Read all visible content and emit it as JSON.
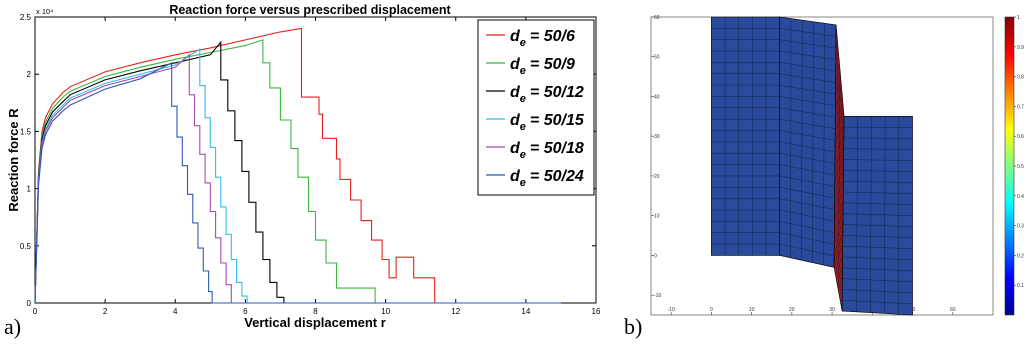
{
  "panel_a_label": "a)",
  "panel_b_label": "b)",
  "chart_data": [
    {
      "type": "line",
      "title": "Reaction force versus prescribed displacement",
      "xlabel": "Vertical displacement r",
      "ylabel": "Reaction force R",
      "y_exponent": "x 10⁴",
      "xlim": [
        0,
        16
      ],
      "ylim": [
        0,
        2.5
      ],
      "x_ticks": [
        0,
        2,
        4,
        6,
        8,
        10,
        12,
        14,
        16
      ],
      "y_ticks": [
        0,
        0.5,
        1,
        1.5,
        2,
        2.5
      ],
      "grid": false,
      "legend_position": "top-right",
      "series": [
        {
          "name": "d_e = 50/6",
          "color": "#e8201c",
          "x": [
            0,
            0.05,
            0.1,
            0.2,
            0.3,
            0.5,
            0.8,
            1,
            2,
            3,
            4,
            5,
            6,
            7,
            7.6,
            7.6,
            8.1,
            8.1,
            8.2,
            8.2,
            8.6,
            8.6,
            8.7,
            8.7,
            9.0,
            9.0,
            9.3,
            9.3,
            9.6,
            9.6,
            9.9,
            9.9,
            10.1,
            10.1,
            10.3,
            10.3,
            10.8,
            10.8,
            11.4,
            11.4,
            15
          ],
          "y": [
            0,
            0.6,
            1.15,
            1.5,
            1.62,
            1.74,
            1.84,
            1.89,
            2.02,
            2.1,
            2.17,
            2.23,
            2.3,
            2.37,
            2.4,
            1.8,
            1.8,
            1.65,
            1.65,
            1.44,
            1.44,
            1.26,
            1.26,
            1.08,
            1.08,
            0.9,
            0.9,
            0.72,
            0.72,
            0.55,
            0.55,
            0.38,
            0.38,
            0.22,
            0.22,
            0.4,
            0.4,
            0.22,
            0.22,
            0,
            0
          ]
        },
        {
          "name": "d_e = 50/9",
          "color": "#3cb53c",
          "x": [
            0,
            0.05,
            0.1,
            0.2,
            0.3,
            0.5,
            0.8,
            1,
            2,
            3,
            4,
            5,
            6,
            6.5,
            6.5,
            6.7,
            6.7,
            7.0,
            7.0,
            7.3,
            7.3,
            7.5,
            7.5,
            7.8,
            7.8,
            8.0,
            8.0,
            8.3,
            8.3,
            8.6,
            8.6,
            9.7,
            9.7,
            15
          ],
          "y": [
            0,
            0.58,
            1.12,
            1.46,
            1.58,
            1.7,
            1.8,
            1.85,
            1.98,
            2.06,
            2.13,
            2.19,
            2.25,
            2.3,
            2.1,
            2.1,
            1.88,
            1.88,
            1.6,
            1.6,
            1.35,
            1.35,
            1.1,
            1.1,
            0.8,
            0.8,
            0.55,
            0.55,
            0.35,
            0.35,
            0.13,
            0.13,
            0,
            0
          ]
        },
        {
          "name": "d_e = 50/12",
          "color": "#000000",
          "x": [
            0,
            0.05,
            0.1,
            0.2,
            0.3,
            0.5,
            0.8,
            1,
            2,
            3,
            4,
            5,
            5.3,
            5.3,
            5.5,
            5.5,
            5.7,
            5.7,
            5.9,
            5.9,
            6.1,
            6.1,
            6.3,
            6.3,
            6.5,
            6.5,
            6.7,
            6.7,
            6.9,
            6.9,
            7.1,
            7.1,
            15
          ],
          "y": [
            0,
            0.56,
            1.1,
            1.43,
            1.55,
            1.67,
            1.76,
            1.82,
            1.95,
            2.03,
            2.1,
            2.17,
            2.28,
            1.95,
            1.95,
            1.68,
            1.68,
            1.42,
            1.42,
            1.15,
            1.15,
            0.88,
            0.88,
            0.62,
            0.62,
            0.38,
            0.38,
            0.18,
            0.18,
            0.05,
            0.05,
            0,
            0
          ]
        },
        {
          "name": "d_e = 50/15",
          "color": "#33bfe0",
          "x": [
            0,
            0.05,
            0.1,
            0.2,
            0.3,
            0.5,
            0.8,
            1,
            2,
            3,
            4,
            4.7,
            4.7,
            4.85,
            4.85,
            5.0,
            5.0,
            5.15,
            5.15,
            5.3,
            5.3,
            5.45,
            5.45,
            5.6,
            5.6,
            5.75,
            5.75,
            5.9,
            5.9,
            6.05,
            6.05,
            15
          ],
          "y": [
            0,
            0.55,
            1.08,
            1.4,
            1.52,
            1.64,
            1.73,
            1.79,
            1.92,
            2.0,
            2.08,
            2.22,
            1.9,
            1.9,
            1.62,
            1.62,
            1.36,
            1.36,
            1.1,
            1.1,
            0.84,
            0.84,
            0.6,
            0.6,
            0.38,
            0.38,
            0.18,
            0.18,
            0.06,
            0.06,
            0,
            0
          ]
        },
        {
          "name": "d_e = 50/18",
          "color": "#a04cb4",
          "x": [
            0,
            0.05,
            0.1,
            0.2,
            0.3,
            0.5,
            0.8,
            1,
            2,
            3,
            4,
            4.4,
            4.4,
            4.55,
            4.55,
            4.7,
            4.7,
            4.85,
            4.85,
            5.0,
            5.0,
            5.15,
            5.15,
            5.3,
            5.3,
            5.45,
            5.45,
            5.6,
            5.6,
            15
          ],
          "y": [
            0,
            0.54,
            1.06,
            1.38,
            1.5,
            1.62,
            1.71,
            1.77,
            1.9,
            1.98,
            2.06,
            2.17,
            1.82,
            1.82,
            1.55,
            1.55,
            1.3,
            1.3,
            1.05,
            1.05,
            0.8,
            0.8,
            0.57,
            0.57,
            0.35,
            0.35,
            0.16,
            0.16,
            0,
            0
          ]
        },
        {
          "name": "d_e = 50/24",
          "color": "#2f58b6",
          "x": [
            0,
            0.05,
            0.1,
            0.2,
            0.3,
            0.5,
            0.8,
            1,
            2,
            3,
            3.9,
            3.9,
            4.05,
            4.05,
            4.2,
            4.2,
            4.35,
            4.35,
            4.5,
            4.5,
            4.65,
            4.65,
            4.8,
            4.8,
            4.95,
            4.95,
            5.05,
            5.05,
            15
          ],
          "y": [
            0,
            0.52,
            1.03,
            1.35,
            1.47,
            1.59,
            1.68,
            1.73,
            1.87,
            1.96,
            2.1,
            1.72,
            1.72,
            1.45,
            1.45,
            1.2,
            1.2,
            0.95,
            0.95,
            0.7,
            0.7,
            0.48,
            0.48,
            0.28,
            0.28,
            0.1,
            0.1,
            0,
            0
          ]
        }
      ],
      "legend": [
        {
          "sub": "e",
          "value": "= 50/6"
        },
        {
          "sub": "e",
          "value": "= 50/9"
        },
        {
          "sub": "e",
          "value": "= 50/12"
        },
        {
          "sub": "e",
          "value": "= 50/15"
        },
        {
          "sub": "e",
          "value": "= 50/18"
        },
        {
          "sub": "e",
          "value": "= 50/24"
        }
      ],
      "legend_symbol": "d"
    },
    {
      "type": "heatmap",
      "title": "",
      "xlim": [
        -15,
        70
      ],
      "ylim": [
        -15,
        60
      ],
      "x_ticks": [
        -10,
        0,
        10,
        20,
        30,
        40,
        50,
        60
      ],
      "y_ticks": [
        -10,
        0,
        10,
        20,
        30,
        40,
        50,
        60
      ],
      "mesh_color": "#2a4b9b",
      "band_color": "#a51e22",
      "colorbar_ticks": [
        0.1,
        0.2,
        0.3,
        0.4,
        0.5,
        0.6,
        0.7,
        0.8,
        0.9,
        1
      ],
      "colorbar_range": [
        0,
        1
      ]
    }
  ]
}
